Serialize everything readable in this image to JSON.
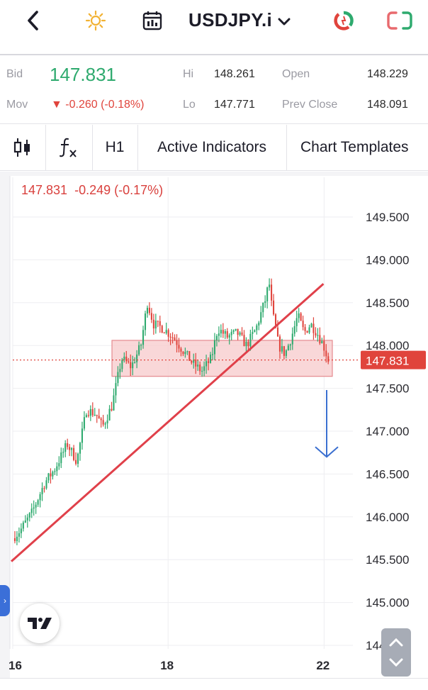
{
  "header": {
    "symbol": "USDJPY.i",
    "icons": [
      "back-chevron-icon",
      "sun-icon",
      "calendar-icon",
      "chevron-down-icon",
      "market-status-icon",
      "screen-toggle-icon"
    ]
  },
  "quote": {
    "bid_label": "Bid",
    "bid_value": "147.831",
    "mov_label": "Mov",
    "mov_value": "▼ -0.260 (-0.18%)",
    "hi_label": "Hi",
    "hi_value": "148.261",
    "lo_label": "Lo",
    "lo_value": "147.771",
    "open_label": "Open",
    "open_value": "148.229",
    "prev_close_label": "Prev Close",
    "prev_close_value": "148.091"
  },
  "toolbar": {
    "timeframe": "H1",
    "indicators_label": "Active Indicators",
    "templates_label": "Chart Templates"
  },
  "chart_head": {
    "price": "147.831",
    "change": "-0.249 (-0.17%)"
  },
  "chart_data": {
    "type": "candlestick",
    "title": "",
    "xlabel": "",
    "ylabel": "",
    "ylim": [
      144.5,
      149.8
    ],
    "yticks": [
      "149.500",
      "149.000",
      "148.500",
      "148.000",
      "147.500",
      "147.000",
      "146.500",
      "146.000",
      "145.500",
      "145.000",
      "144.500"
    ],
    "xticks": [
      {
        "label": "16",
        "pos": 0
      },
      {
        "label": "18",
        "pos": 0.485
      },
      {
        "label": "22",
        "pos": 0.972
      }
    ],
    "current_price": "147.831",
    "current_price_value": 147.831,
    "zone": {
      "low": 147.64,
      "high": 148.06
    },
    "trendline": {
      "from": [
        0,
        145.48
      ],
      "to": [
        0.97,
        148.72
      ]
    },
    "arrow": {
      "direction": "down",
      "from": 147.48,
      "to": 146.7
    },
    "key_points": [
      [
        0,
        145.75
      ],
      [
        0.025,
        145.85
      ],
      [
        0.06,
        146.05
      ],
      [
        0.1,
        146.4
      ],
      [
        0.13,
        146.55
      ],
      [
        0.17,
        146.85
      ],
      [
        0.2,
        146.65
      ],
      [
        0.23,
        147.25
      ],
      [
        0.26,
        147.2
      ],
      [
        0.28,
        147.05
      ],
      [
        0.31,
        147.3
      ],
      [
        0.34,
        147.85
      ],
      [
        0.37,
        147.75
      ],
      [
        0.4,
        148.0
      ],
      [
        0.42,
        148.5
      ],
      [
        0.44,
        148.25
      ],
      [
        0.47,
        148.2
      ],
      [
        0.5,
        148.1
      ],
      [
        0.53,
        147.95
      ],
      [
        0.56,
        147.8
      ],
      [
        0.59,
        147.7
      ],
      [
        0.62,
        147.85
      ],
      [
        0.64,
        148.2
      ],
      [
        0.67,
        148.1
      ],
      [
        0.7,
        148.15
      ],
      [
        0.73,
        148.0
      ],
      [
        0.76,
        148.2
      ],
      [
        0.79,
        148.55
      ],
      [
        0.8,
        148.75
      ],
      [
        0.81,
        148.4
      ],
      [
        0.83,
        148.0
      ],
      [
        0.85,
        147.9
      ],
      [
        0.87,
        148.1
      ],
      [
        0.89,
        148.35
      ],
      [
        0.91,
        148.15
      ],
      [
        0.93,
        148.25
      ],
      [
        0.95,
        148.15
      ],
      [
        0.97,
        148.0
      ],
      [
        0.985,
        147.83
      ]
    ],
    "colors": {
      "up": "#2eaa6e",
      "down": "#e0443c",
      "trendline": "#e0404a",
      "zone_fill": "#f7c9cb",
      "zone_stroke": "#e58a8f",
      "arrow": "#3a6fd0"
    }
  }
}
